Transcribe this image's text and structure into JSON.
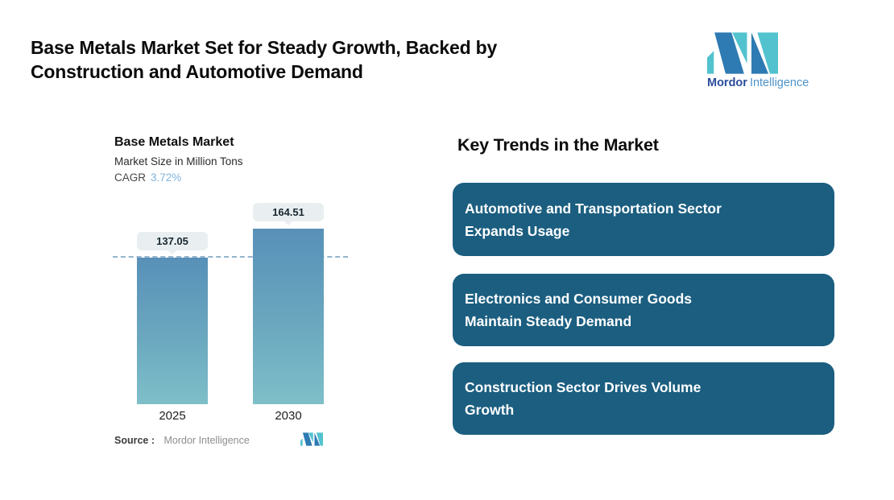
{
  "header": {
    "title_line1": "Base Metals Market Set for Steady Growth, Backed by",
    "title_line2": "Construction and Automotive Demand",
    "title_full": "Base Metals Market Set for Steady Growth, Backed by Construction and Automotive Demand",
    "logo": {
      "name_bold": "Mordor",
      "name_light": "Intelligence",
      "color_dark_blue": "#2e7ab3",
      "color_teal": "#52c2ce"
    }
  },
  "chart": {
    "title": "Base Metals Market",
    "subtitle": "Market Size in Million Tons",
    "cagr_label": "CAGR",
    "cagr_value": "3.72%",
    "source_label": "Source :",
    "source_value": "Mordor Intelligence"
  },
  "chart_data": {
    "type": "bar",
    "title": "Base Metals Market",
    "subtitle": "Market Size in Million Tons",
    "unit": "Million Tons",
    "cagr": "3.72%",
    "categories": [
      "2025",
      "2030"
    ],
    "values": [
      137.05,
      164.51
    ],
    "value_labels": [
      "137.05",
      "164.51"
    ],
    "reference_line_value": 137.05,
    "reference_line_style": "dashed",
    "bar_gradient_top": "#5890b8",
    "bar_gradient_bottom": "#7ebfc9",
    "badge_bg": "#e9eff1",
    "legend": "none",
    "grid": "off"
  },
  "key_trends": {
    "heading": "Key Trends in the Market",
    "box_color": "#1b5e80",
    "items": [
      {
        "line1": "Automotive and Transportation Sector",
        "line2": "Expands Usage",
        "full": "Automotive and Transportation Sector Expands Usage"
      },
      {
        "line1": "Electronics and Consumer Goods",
        "line2": "Maintain Steady Demand",
        "full": "Electronics and Consumer Goods Maintain Steady Demand"
      },
      {
        "line1": "Construction Sector Drives Volume",
        "line2": "Growth",
        "full": "Construction Sector Drives Volume Growth"
      }
    ]
  }
}
